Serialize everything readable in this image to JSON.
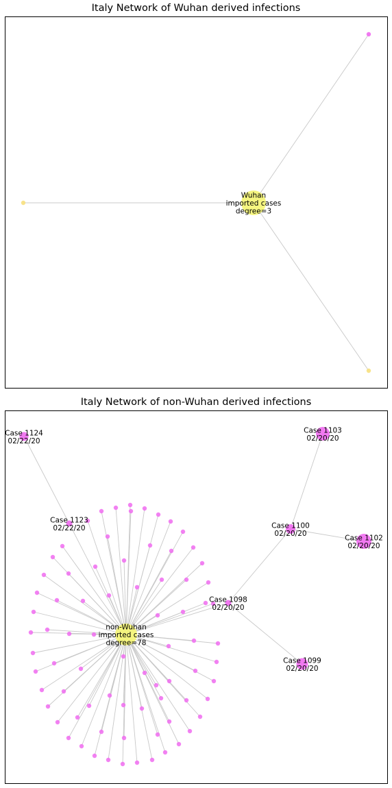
{
  "colors": {
    "edge": "#c8c8c8",
    "hub": "#f5f57a",
    "leaf_yellow": "#f7e07e",
    "leaf_magenta": "#f06cf0",
    "frame": "#000000"
  },
  "panels": [
    {
      "title": "Italy Network of Wuhan derived infections",
      "hub": {
        "id": "wuhan",
        "lines": [
          "Wuhan",
          "imported cases",
          "degree=3"
        ]
      },
      "leaves": [
        {
          "id": "w-leaf-top-right",
          "color": "leaf_magenta"
        },
        {
          "id": "w-leaf-left",
          "color": "leaf_yellow"
        },
        {
          "id": "w-leaf-bottom-right",
          "color": "leaf_yellow"
        }
      ]
    },
    {
      "title": "Italy Network of non-Wuhan derived infections",
      "hub": {
        "id": "non-wuhan",
        "lines": [
          "non-Wuhan",
          "imported cases",
          "degree=78"
        ]
      },
      "labeled_cases": [
        {
          "id": "case-1124",
          "lines": [
            "Case 1124",
            "02/22/20"
          ]
        },
        {
          "id": "case-1123",
          "lines": [
            "Case 1123",
            "02/22/20"
          ]
        },
        {
          "id": "case-1103",
          "lines": [
            "Case 1103",
            "02/20/20"
          ]
        },
        {
          "id": "case-1100",
          "lines": [
            "Case 1100",
            "02/20/20"
          ]
        },
        {
          "id": "case-1102",
          "lines": [
            "Case 1102",
            "02/20/20"
          ]
        },
        {
          "id": "case-1098",
          "lines": [
            "Case 1098",
            "02/20/20"
          ]
        },
        {
          "id": "case-1099",
          "lines": [
            "Case 1099",
            "02/20/20"
          ]
        }
      ],
      "edges": [
        [
          "case-1124",
          "case-1123"
        ],
        [
          "case-1123",
          "non-wuhan"
        ],
        [
          "non-wuhan",
          "case-1098"
        ],
        [
          "case-1098",
          "case-1100"
        ],
        [
          "case-1098",
          "case-1099"
        ],
        [
          "case-1100",
          "case-1103"
        ],
        [
          "case-1100",
          "case-1102"
        ]
      ]
    }
  ]
}
